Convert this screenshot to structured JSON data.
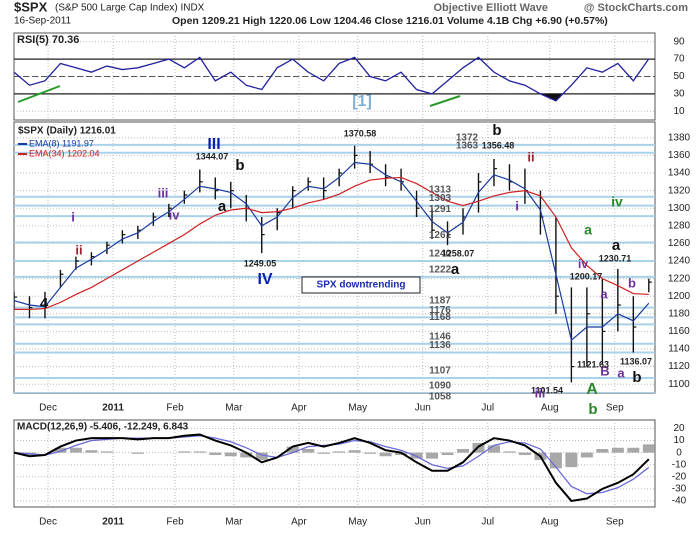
{
  "header": {
    "symbol": "$SPX",
    "name": "(S&P 500 Large Cap Index) INDX",
    "date": "16-Sep-2011",
    "quote": "Open 1209.21 High 1220.06 Low 1204.46 Close 1216.01 Volume 4.1B Chg +6.90 (+0.57%)",
    "title": "Objective Elliott Wave",
    "credit": "@ StockCharts.com"
  },
  "chart_data": [
    {
      "type": "line",
      "title": "RSI(5) 70.36",
      "color": "#2020a0",
      "x": [
        0,
        5,
        10,
        15,
        20,
        25,
        30,
        35,
        40,
        45,
        50,
        55,
        60,
        65,
        70,
        75,
        80,
        85,
        90,
        95,
        100,
        105,
        110,
        115,
        120,
        125,
        130,
        135,
        140,
        145,
        150,
        155,
        160,
        165,
        170,
        175,
        180,
        185,
        190,
        195,
        200,
        205
      ],
      "values": [
        55,
        40,
        45,
        65,
        60,
        55,
        62,
        58,
        60,
        65,
        70,
        60,
        72,
        45,
        55,
        40,
        35,
        60,
        70,
        55,
        45,
        65,
        72,
        50,
        45,
        55,
        35,
        30,
        45,
        60,
        72,
        55,
        45,
        40,
        30,
        22,
        40,
        60,
        55,
        65,
        45,
        70.36
      ],
      "xlim": [
        0,
        207
      ],
      "ylim": [
        0,
        100
      ],
      "yticks": [
        10,
        30,
        50,
        70,
        90
      ],
      "bands": [
        30,
        70
      ]
    },
    {
      "type": "ohlc",
      "title": "$SPX (Daily) 1216.01",
      "x": [
        0,
        5,
        10,
        15,
        20,
        25,
        30,
        35,
        40,
        45,
        50,
        55,
        60,
        65,
        70,
        75,
        80,
        85,
        90,
        95,
        100,
        105,
        110,
        115,
        120,
        125,
        130,
        135,
        140,
        145,
        150,
        155,
        160,
        165,
        170,
        175,
        180,
        185,
        190,
        195,
        200,
        205
      ],
      "high": [
        1205,
        1200,
        1205,
        1230,
        1245,
        1250,
        1262,
        1275,
        1280,
        1295,
        1305,
        1320,
        1344,
        1335,
        1330,
        1315,
        1290,
        1300,
        1325,
        1335,
        1335,
        1345,
        1371,
        1365,
        1350,
        1345,
        1320,
        1300,
        1285,
        1300,
        1340,
        1356,
        1350,
        1345,
        1320,
        1290,
        1210,
        1210,
        1220,
        1231,
        1200,
        1220.06
      ],
      "low": [
        1185,
        1175,
        1175,
        1210,
        1230,
        1235,
        1248,
        1260,
        1265,
        1280,
        1290,
        1305,
        1318,
        1310,
        1300,
        1285,
        1249,
        1275,
        1300,
        1320,
        1310,
        1325,
        1345,
        1340,
        1325,
        1320,
        1290,
        1265,
        1258,
        1270,
        1295,
        1325,
        1320,
        1305,
        1270,
        1180,
        1102,
        1120,
        1122,
        1160,
        1136,
        1204.46
      ],
      "close": [
        1199,
        1187,
        1190,
        1225,
        1240,
        1245,
        1258,
        1270,
        1275,
        1290,
        1300,
        1315,
        1330,
        1320,
        1320,
        1300,
        1270,
        1295,
        1320,
        1330,
        1320,
        1340,
        1360,
        1350,
        1335,
        1330,
        1300,
        1275,
        1270,
        1290,
        1330,
        1345,
        1330,
        1320,
        1290,
        1200,
        1120,
        1180,
        1160,
        1190,
        1165,
        1216.01
      ],
      "color": "#111",
      "series": [
        {
          "name": "EMA(8) 1191.97",
          "color": "#1a3aa0",
          "values": [
            1195,
            1190,
            1188,
            1210,
            1232,
            1242,
            1253,
            1265,
            1272,
            1285,
            1296,
            1310,
            1325,
            1322,
            1318,
            1305,
            1280,
            1290,
            1312,
            1325,
            1322,
            1335,
            1352,
            1350,
            1338,
            1330,
            1308,
            1285,
            1272,
            1284,
            1318,
            1338,
            1332,
            1322,
            1298,
            1225,
            1150,
            1165,
            1165,
            1180,
            1172,
            1191.97
          ]
        },
        {
          "name": "EMA(34) 1202.04",
          "color": "#d02020",
          "values": [
            1185,
            1185,
            1186,
            1193,
            1202,
            1210,
            1220,
            1230,
            1240,
            1250,
            1260,
            1270,
            1282,
            1292,
            1298,
            1300,
            1295,
            1296,
            1300,
            1306,
            1310,
            1316,
            1325,
            1332,
            1334,
            1335,
            1328,
            1318,
            1308,
            1303,
            1308,
            1314,
            1318,
            1320,
            1314,
            1290,
            1255,
            1235,
            1220,
            1212,
            1203,
            1202.04
          ]
        }
      ],
      "xlim": [
        0,
        207
      ],
      "xticks": [
        {
          "value": 11,
          "label": "Dec"
        },
        {
          "value": 32,
          "label": "2011"
        },
        {
          "value": 52,
          "label": "Feb"
        },
        {
          "value": 71,
          "label": "Mar"
        },
        {
          "value": 92,
          "label": "Apr"
        },
        {
          "value": 111,
          "label": "May"
        },
        {
          "value": 132,
          "label": "Jun"
        },
        {
          "value": 153,
          "label": "Jul"
        },
        {
          "value": 173,
          "label": "Aug"
        },
        {
          "value": 194,
          "label": "Sep"
        }
      ],
      "ylim": [
        1090,
        1398
      ],
      "yticks": [
        1100,
        1120,
        1140,
        1160,
        1180,
        1200,
        1220,
        1240,
        1260,
        1280,
        1300,
        1320,
        1340,
        1360,
        1380
      ],
      "levels": [
        1372,
        1363,
        1313,
        1303,
        1291,
        1261,
        1240,
        1222,
        1187,
        1176,
        1168,
        1146,
        1136,
        1107,
        1090,
        1058
      ],
      "level_color": "#a9d2ea",
      "annotations": [
        {
          "text": "[1]",
          "color": "#7fb0d8"
        },
        {
          "text": "1370.58",
          "color": "#222"
        },
        {
          "text": "b",
          "color": "#111"
        },
        {
          "text": "1356.48",
          "color": "#222"
        },
        {
          "text": "III",
          "color": "#0a1fb0"
        },
        {
          "text": "1344.07",
          "color": "#222"
        },
        {
          "text": "b",
          "color": "#111"
        },
        {
          "text": "ii",
          "color": "#a02030"
        },
        {
          "text": "i",
          "color": "#70309a"
        },
        {
          "text": "ii",
          "color": "#a02030"
        },
        {
          "text": "iii",
          "color": "#70309a"
        },
        {
          "text": "iv",
          "color": "#70309a"
        },
        {
          "text": "a",
          "color": "#111"
        },
        {
          "text": "1249.05",
          "color": "#222"
        },
        {
          "text": "IV",
          "color": "#0a1fb0"
        },
        {
          "text": "i",
          "color": "#70309a"
        },
        {
          "text": "1258.07",
          "color": "#222"
        },
        {
          "text": "a",
          "color": "#111"
        },
        {
          "text": "SPX downtrending",
          "color": "#1a2ab0"
        },
        {
          "text": "4",
          "color": "#111"
        },
        {
          "text": "iv",
          "color": "#2a8a2a"
        },
        {
          "text": "a",
          "color": "#2a8a2a"
        },
        {
          "text": "a",
          "color": "#111"
        },
        {
          "text": "1230.71",
          "color": "#222"
        },
        {
          "text": "iv",
          "color": "#70309a"
        },
        {
          "text": "1200.17",
          "color": "#222"
        },
        {
          "text": "a",
          "color": "#70309a"
        },
        {
          "text": "b",
          "color": "#70309a"
        },
        {
          "text": "1136.07",
          "color": "#222"
        },
        {
          "text": "b",
          "color": "#111"
        },
        {
          "text": "a",
          "color": "#70309a"
        },
        {
          "text": "B",
          "color": "#70309a"
        },
        {
          "text": "1121.63",
          "color": "#222"
        },
        {
          "text": "A",
          "color": "#2a8a2a"
        },
        {
          "text": "1101.54",
          "color": "#222"
        },
        {
          "text": "iii",
          "color": "#70309a"
        },
        {
          "text": "b",
          "color": "#2a8a2a"
        }
      ]
    },
    {
      "type": "macd",
      "title": "MACD(12,26,9) -5.406, -12.249, 6.843",
      "x": [
        0,
        5,
        10,
        15,
        20,
        25,
        30,
        35,
        40,
        45,
        50,
        55,
        60,
        65,
        70,
        75,
        80,
        85,
        90,
        95,
        100,
        105,
        110,
        115,
        120,
        125,
        130,
        135,
        140,
        145,
        150,
        155,
        160,
        165,
        170,
        175,
        180,
        185,
        190,
        195,
        200,
        205
      ],
      "macd": [
        0,
        -3,
        -2,
        5,
        10,
        12,
        12,
        12,
        11,
        12,
        12,
        14,
        15,
        10,
        6,
        0,
        -8,
        -4,
        5,
        8,
        5,
        8,
        12,
        8,
        2,
        0,
        -8,
        -15,
        -15,
        -8,
        5,
        12,
        10,
        6,
        -3,
        -25,
        -40,
        -38,
        -30,
        -25,
        -18,
        -5.406
      ],
      "signal": [
        0,
        -1,
        -2,
        1,
        6,
        10,
        11,
        12,
        12,
        12,
        12,
        13,
        14,
        12,
        9,
        4,
        -2,
        -4,
        0,
        5,
        6,
        7,
        10,
        9,
        5,
        2,
        -3,
        -10,
        -13,
        -11,
        -3,
        6,
        9,
        8,
        3,
        -12,
        -28,
        -34,
        -33,
        -29,
        -22,
        -12.249
      ],
      "histogram": [
        0,
        -2,
        0,
        4,
        4,
        2,
        1,
        0,
        -1,
        0,
        0,
        1,
        1,
        -2,
        -3,
        -4,
        -6,
        0,
        5,
        3,
        -1,
        1,
        2,
        -1,
        -3,
        -2,
        -5,
        -5,
        -2,
        3,
        8,
        6,
        1,
        -2,
        -6,
        -13,
        -12,
        -4,
        3,
        4,
        4,
        6.843
      ],
      "colors": {
        "macd": "#000",
        "signal": "#6a6ad8",
        "histogram": "#a8a8a8"
      },
      "xlim": [
        0,
        207
      ],
      "xticks": [
        {
          "value": 11,
          "label": "Dec"
        },
        {
          "value": 32,
          "label": "2011"
        },
        {
          "value": 52,
          "label": "Feb"
        },
        {
          "value": 71,
          "label": "Mar"
        },
        {
          "value": 92,
          "label": "Apr"
        },
        {
          "value": 111,
          "label": "May"
        },
        {
          "value": 132,
          "label": "Jun"
        },
        {
          "value": 153,
          "label": "Jul"
        },
        {
          "value": 173,
          "label": "Aug"
        },
        {
          "value": 194,
          "label": "Sep"
        }
      ],
      "ylim": [
        -45,
        27
      ],
      "yticks": [
        20,
        10,
        0,
        -10,
        -20,
        -30,
        -40
      ]
    }
  ]
}
